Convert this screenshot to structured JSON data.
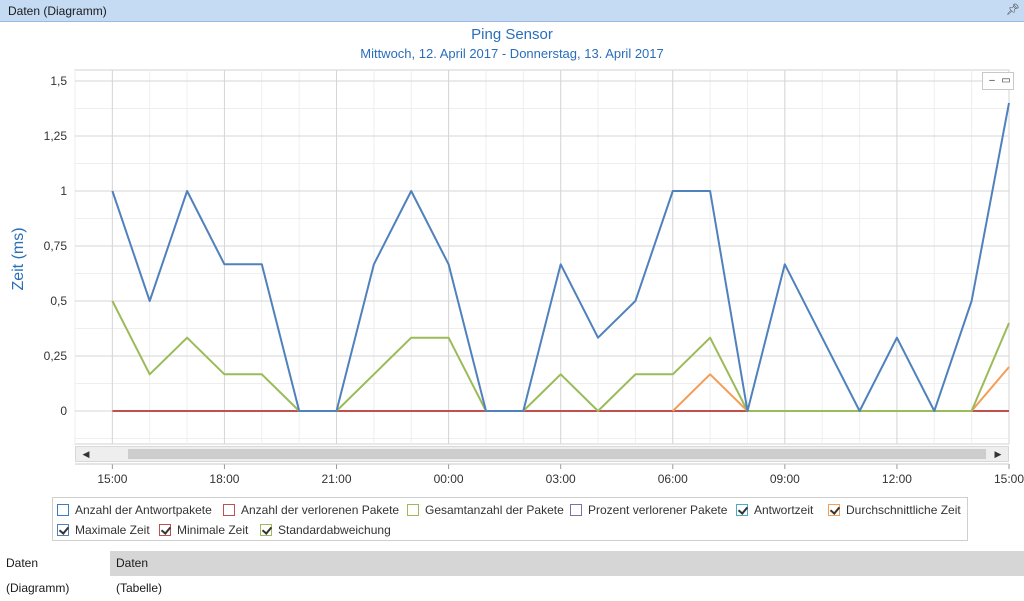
{
  "panel": {
    "title": "Daten (Diagramm)",
    "pin_icon": "pin-icon"
  },
  "tabs": [
    {
      "label": "Daten (Diagramm)",
      "active": true
    },
    {
      "label": "Daten (Tabelle)",
      "active": false
    }
  ],
  "colors": {
    "title": "#2a6ebb",
    "Anzahl der Antwortpakete": "#3a7bc8",
    "Anzahl der verlorenen Pakete": "#c0504d",
    "Gesamtanzahl der Pakete": "#9bbb59",
    "Prozent verlorener Pakete": "#7e6fa9",
    "Antwortzeit": "#4bacc6",
    "Durchschnittliche Zeit": "#f59d56",
    "Maximale Zeit": "#4f81bd",
    "Minimale Zeit": "#c0504d",
    "Standardabweichung": "#9bbb59"
  },
  "chart_data": {
    "type": "line",
    "title": "Ping Sensor",
    "subtitle": "Mittwoch, 12. April 2017 - Donnerstag, 13. April 2017",
    "ylabel": "Zeit (ms)",
    "xlabel": "",
    "ylim": [
      -0.15,
      1.55
    ],
    "yticks": [
      0,
      0.25,
      0.5,
      0.75,
      1,
      1.25,
      1.5
    ],
    "ytick_labels": [
      "0",
      "0,25",
      "0,5",
      "0,75",
      "1",
      "1,25",
      "1,5"
    ],
    "xlim": [
      14.0,
      39.0
    ],
    "xticks": [
      15,
      18,
      21,
      24,
      27,
      30,
      33,
      36,
      39
    ],
    "xtick_labels": [
      "15:00",
      "18:00",
      "21:00",
      "00:00",
      "03:00",
      "06:00",
      "09:00",
      "12:00",
      "15:00"
    ],
    "x": [
      15,
      16,
      17,
      18,
      19,
      20,
      21,
      22,
      23,
      24,
      25,
      26,
      27,
      28,
      29,
      30,
      31,
      32,
      33,
      34,
      35,
      36,
      37,
      38,
      39
    ],
    "grid": true,
    "series": [
      {
        "name": "Maximale Zeit",
        "values": [
          1.0,
          0.5,
          1.0,
          0.667,
          0.667,
          0,
          0,
          0.667,
          1.0,
          0.667,
          0,
          0,
          0.667,
          0.333,
          0.5,
          1.0,
          1.0,
          0,
          0.667,
          0.333,
          0,
          0.333,
          0,
          0.5,
          1.4
        ]
      },
      {
        "name": "Minimale Zeit",
        "values": [
          0,
          0,
          0,
          0,
          0,
          0,
          0,
          0,
          0,
          0,
          0,
          0,
          0,
          0,
          0,
          0,
          0,
          0,
          0,
          0,
          0,
          0,
          0,
          0,
          0
        ]
      },
      {
        "name": "Durchschnittliche Zeit",
        "values": [
          null,
          null,
          null,
          null,
          null,
          null,
          null,
          null,
          null,
          null,
          null,
          null,
          null,
          null,
          null,
          0,
          0.167,
          0,
          0,
          0,
          0,
          0,
          0,
          0,
          0.2
        ]
      },
      {
        "name": "Standardabweichung",
        "values": [
          0.5,
          0.167,
          0.333,
          0.167,
          0.167,
          0,
          0,
          0.167,
          0.333,
          0.333,
          0,
          0,
          0.167,
          0,
          0.167,
          0.167,
          0.333,
          0,
          0,
          0,
          0,
          0,
          0,
          0,
          0.4
        ]
      }
    ],
    "legend": [
      {
        "label": "Anzahl der Antwortpakete",
        "checked": false
      },
      {
        "label": "Anzahl der verlorenen Pakete",
        "checked": false
      },
      {
        "label": "Gesamtanzahl der Pakete",
        "checked": false
      },
      {
        "label": "Prozent verlorener Pakete",
        "checked": false
      },
      {
        "label": "Antwortzeit",
        "checked": true
      },
      {
        "label": "Durchschnittliche Zeit",
        "checked": true
      },
      {
        "label": "Maximale Zeit",
        "checked": true
      },
      {
        "label": "Minimale Zeit",
        "checked": true
      },
      {
        "label": "Standardabweichung",
        "checked": true
      }
    ],
    "legend_position": "bottom"
  },
  "window_controls": {
    "minimize_icon": "minimize-icon",
    "maximize_icon": "maximize-icon"
  },
  "scrollbar": {
    "left_icon": "chevron-left-icon",
    "right_icon": "chevron-right-icon"
  }
}
